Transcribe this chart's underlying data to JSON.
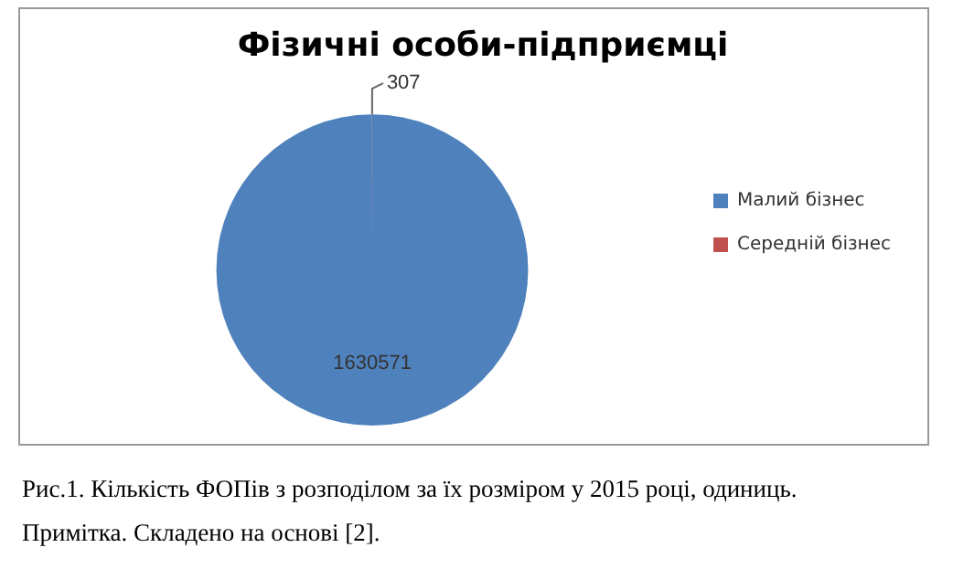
{
  "chart_data": {
    "type": "pie",
    "title": "Фізичні особи-підприємці",
    "categories": [
      "Малий бізнес",
      "Середній бізнес"
    ],
    "values": [
      1630571,
      307
    ],
    "colors": [
      "#4f81bd",
      "#c0504d"
    ],
    "data_labels": true,
    "legend": "right",
    "annotations": [
      "Рис.1. Кількість ФОПів з розподілом за їх розміром у 2015 році, одиниць.",
      "Примітка. Складено на основі [2]."
    ]
  }
}
